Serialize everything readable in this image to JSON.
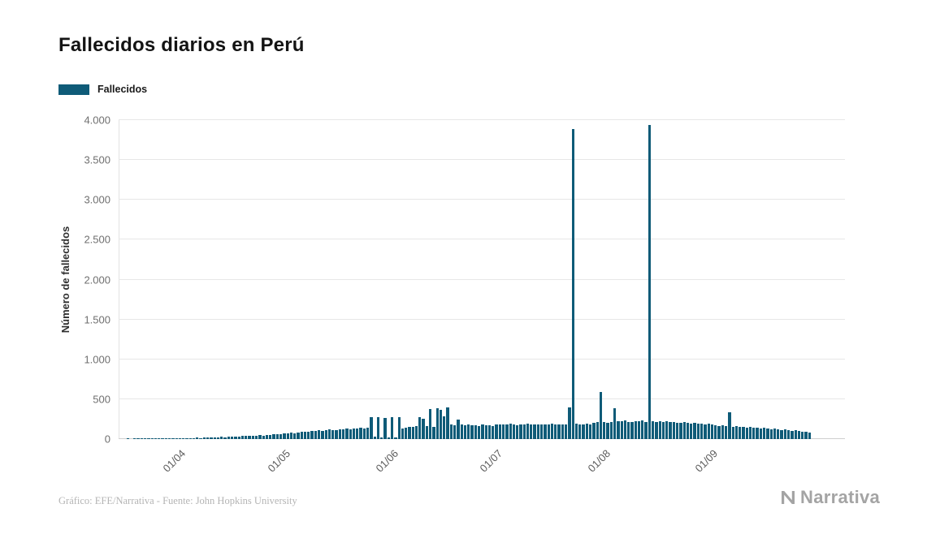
{
  "title": "Fallecidos diarios en Perú",
  "legend": {
    "label": "Fallecidos"
  },
  "footer": {
    "credits": "Gráfico: EFE/Narrativa - Fuente: John Hopkins University",
    "brand": "Narrativa"
  },
  "chart_data": {
    "type": "bar",
    "title": "Fallecidos diarios en Perú",
    "series_name": "Fallecidos",
    "xlabel": "",
    "ylabel": "Número de fallecidos",
    "ylim": [
      0,
      4000
    ],
    "grid": true,
    "legend_position": "top-left",
    "x_label_rotation": -45,
    "color": "#0f5b78",
    "dates": [
      "15/03",
      "16/03",
      "17/03",
      "18/03",
      "19/03",
      "20/03",
      "21/03",
      "22/03",
      "23/03",
      "24/03",
      "25/03",
      "26/03",
      "27/03",
      "28/03",
      "29/03",
      "30/03",
      "31/03",
      "01/04",
      "02/04",
      "03/04",
      "04/04",
      "05/04",
      "06/04",
      "07/04",
      "08/04",
      "09/04",
      "10/04",
      "11/04",
      "12/04",
      "13/04",
      "14/04",
      "15/04",
      "16/04",
      "17/04",
      "18/04",
      "19/04",
      "20/04",
      "21/04",
      "22/04",
      "23/04",
      "24/04",
      "25/04",
      "26/04",
      "27/04",
      "28/04",
      "29/04",
      "30/04",
      "01/05",
      "02/05",
      "03/05",
      "04/05",
      "05/05",
      "06/05",
      "07/05",
      "08/05",
      "09/05",
      "10/05",
      "11/05",
      "12/05",
      "13/05",
      "14/05",
      "15/05",
      "16/05",
      "17/05",
      "18/05",
      "19/05",
      "20/05",
      "21/05",
      "22/05",
      "23/05",
      "24/05",
      "25/05",
      "26/05",
      "27/05",
      "28/05",
      "29/05",
      "30/05",
      "31/05",
      "01/06",
      "02/06",
      "03/06",
      "04/06",
      "05/06",
      "06/06",
      "07/06",
      "08/06",
      "09/06",
      "10/06",
      "11/06",
      "12/06",
      "13/06",
      "14/06",
      "15/06",
      "16/06",
      "17/06",
      "18/06",
      "19/06",
      "20/06",
      "21/06",
      "22/06",
      "23/06",
      "24/06",
      "25/06",
      "26/06",
      "27/06",
      "28/06",
      "29/06",
      "30/06",
      "01/07",
      "02/07",
      "03/07",
      "04/07",
      "05/07",
      "06/07",
      "07/07",
      "08/07",
      "09/07",
      "10/07",
      "11/07",
      "12/07",
      "13/07",
      "14/07",
      "15/07",
      "16/07",
      "17/07",
      "18/07",
      "19/07",
      "20/07",
      "21/07",
      "22/07",
      "23/07",
      "24/07",
      "25/07",
      "26/07",
      "27/07",
      "28/07",
      "29/07",
      "30/07",
      "31/07",
      "01/08",
      "02/08",
      "03/08",
      "04/08",
      "05/08",
      "06/08",
      "07/08",
      "08/08",
      "09/08",
      "10/08",
      "11/08",
      "12/08",
      "13/08",
      "14/08",
      "15/08",
      "16/08",
      "17/08",
      "18/08",
      "19/08",
      "20/08",
      "21/08",
      "22/08",
      "23/08",
      "24/08",
      "25/08",
      "26/08",
      "27/08",
      "28/08",
      "29/08",
      "30/08",
      "31/08",
      "01/09",
      "02/09",
      "03/09",
      "04/09",
      "05/09",
      "06/09",
      "07/09",
      "08/09",
      "09/09",
      "10/09",
      "11/09",
      "12/09",
      "13/09",
      "14/09",
      "15/09",
      "16/09",
      "17/09",
      "18/09",
      "19/09",
      "20/09",
      "21/09",
      "22/09",
      "23/09",
      "24/09",
      "25/09",
      "26/09",
      "27/09",
      "28/09",
      "29/09"
    ],
    "values": [
      0,
      0,
      1,
      0,
      2,
      1,
      3,
      2,
      4,
      3,
      5,
      4,
      6,
      5,
      7,
      8,
      9,
      8,
      10,
      12,
      9,
      14,
      16,
      13,
      18,
      20,
      17,
      22,
      25,
      28,
      24,
      30,
      33,
      29,
      35,
      38,
      40,
      36,
      42,
      45,
      48,
      44,
      50,
      55,
      60,
      57,
      63,
      70,
      75,
      80,
      72,
      85,
      90,
      95,
      88,
      100,
      105,
      110,
      98,
      115,
      120,
      108,
      112,
      118,
      125,
      130,
      122,
      128,
      135,
      140,
      132,
      138,
      270,
      30,
      272,
      25,
      268,
      20,
      275,
      18,
      270,
      135,
      145,
      150,
      155,
      160,
      280,
      255,
      165,
      380,
      155,
      390,
      365,
      285,
      395,
      180,
      175,
      240,
      185,
      178,
      182,
      172,
      176,
      168,
      180,
      174,
      170,
      165,
      185,
      180,
      188,
      182,
      190,
      185,
      178,
      187,
      183,
      189,
      184,
      181,
      186,
      188,
      180,
      185,
      190,
      182,
      187,
      184,
      180,
      398,
      3887,
      195,
      188,
      180,
      190,
      185,
      200,
      210,
      590,
      210,
      205,
      215,
      384,
      220,
      225,
      230,
      215,
      210,
      225,
      220,
      230,
      215,
      3935,
      220,
      210,
      225,
      215,
      220,
      210,
      215,
      205,
      200,
      210,
      205,
      195,
      200,
      190,
      195,
      185,
      190,
      180,
      175,
      165,
      170,
      160,
      340,
      155,
      165,
      150,
      155,
      145,
      150,
      140,
      145,
      135,
      140,
      130,
      125,
      135,
      120,
      115,
      125,
      110,
      105,
      115,
      100,
      95,
      90,
      85
    ],
    "y_ticks": [
      {
        "value": 0,
        "label": "0"
      },
      {
        "value": 500,
        "label": "500"
      },
      {
        "value": 1000,
        "label": "1.000"
      },
      {
        "value": 1500,
        "label": "1.500"
      },
      {
        "value": 2000,
        "label": "2.000"
      },
      {
        "value": 2500,
        "label": "2.500"
      },
      {
        "value": 3000,
        "label": "3.000"
      },
      {
        "value": 3500,
        "label": "3.500"
      },
      {
        "value": 4000,
        "label": "4.000"
      }
    ],
    "x_ticks": [
      {
        "label": "01/04",
        "index": 17
      },
      {
        "label": "01/05",
        "index": 47
      },
      {
        "label": "01/06",
        "index": 78
      },
      {
        "label": "01/07",
        "index": 108
      },
      {
        "label": "01/08",
        "index": 139
      },
      {
        "label": "01/09",
        "index": 170
      }
    ]
  }
}
